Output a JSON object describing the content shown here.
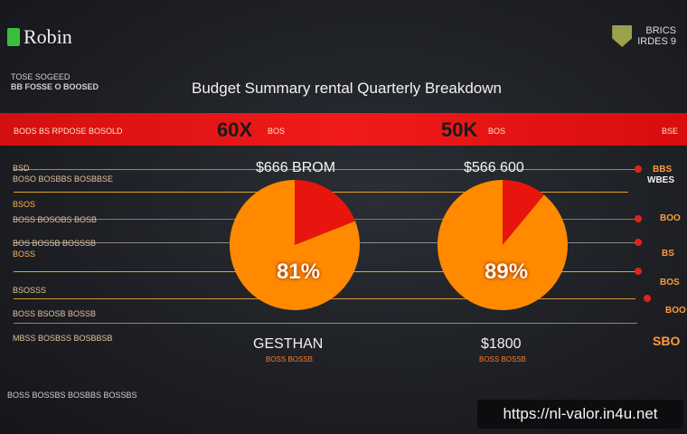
{
  "header": {
    "logo_text": "Robin",
    "brand_lines": [
      "BRICS",
      "IRDES 9"
    ],
    "sub_left_1": "TOSE SOGEED",
    "sub_left_2": "BB FOSSE O BOOSED"
  },
  "title": "Budget Summary rental Quarterly Breakdown",
  "band": {
    "left_caption": "BODS BS RPDOSE BOSOLD",
    "value_1": "60X",
    "value_1_unit": "BOS",
    "value_2": "50K",
    "value_2_unit": "BOS",
    "right_caption": "BSE"
  },
  "rows": {
    "left": [
      "BSD",
      "BOSO BOSBBS BOSBBSE",
      "BSOS",
      "BOSS BOSOBS BOSB",
      "BOS BOSSB BOSSSB",
      "BOSS",
      "BSOSSS",
      "BOSS BSOSB BOSSB",
      "MBSS BOSBSS BOSBBSB"
    ],
    "right": [
      "BBS",
      "WBES",
      "BOO",
      "BS",
      "BOS",
      "BOO",
      "SBO"
    ]
  },
  "chart_data": [
    {
      "type": "pie",
      "title": "$666 BROM",
      "center_label": "81%",
      "values": [
        19,
        81
      ],
      "colors": [
        "#e8150f",
        "#ff8a00"
      ],
      "footer": "GESTHAN",
      "footer_sub": "BOSS BOSSB"
    },
    {
      "type": "pie",
      "title": "$566 600",
      "center_label": "89%",
      "values": [
        11,
        89
      ],
      "colors": [
        "#e8150f",
        "#ff8a00"
      ],
      "footer": "$1800",
      "footer_sub": "BOSS BOSSB"
    }
  ],
  "bottom_caption": "BOSS BOSSBS BOSBBS BOSSBS",
  "url": "https://nl-valor.in4u.net"
}
